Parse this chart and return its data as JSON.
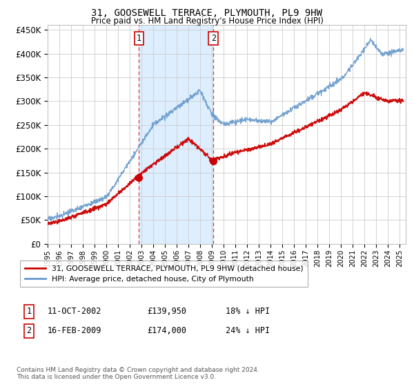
{
  "title": "31, GOOSEWELL TERRACE, PLYMOUTH, PL9 9HW",
  "subtitle": "Price paid vs. HM Land Registry's House Price Index (HPI)",
  "background_color": "#ffffff",
  "plot_bg_color": "#ffffff",
  "grid_color": "#cccccc",
  "ylim": [
    0,
    460000
  ],
  "yticks": [
    0,
    50000,
    100000,
    150000,
    200000,
    250000,
    300000,
    350000,
    400000,
    450000
  ],
  "ytick_labels": [
    "£0",
    "£50K",
    "£100K",
    "£150K",
    "£200K",
    "£250K",
    "£300K",
    "£350K",
    "£400K",
    "£450K"
  ],
  "xlim_start": 1995.0,
  "xlim_end": 2025.5,
  "xtick_years": [
    1995,
    1996,
    1997,
    1998,
    1999,
    2000,
    2001,
    2002,
    2003,
    2004,
    2005,
    2006,
    2007,
    2008,
    2009,
    2010,
    2011,
    2012,
    2013,
    2014,
    2015,
    2016,
    2017,
    2018,
    2019,
    2020,
    2021,
    2022,
    2023,
    2024,
    2025
  ],
  "transaction1_x": 2002.78,
  "transaction1_y": 139950,
  "transaction1_label": "1",
  "transaction1_date": "11-OCT-2002",
  "transaction1_price": "£139,950",
  "transaction1_hpi": "18% ↓ HPI",
  "transaction2_x": 2009.12,
  "transaction2_y": 174000,
  "transaction2_label": "2",
  "transaction2_date": "16-FEB-2009",
  "transaction2_price": "£174,000",
  "transaction2_hpi": "24% ↓ HPI",
  "shaded_region_color": "#ddeeff",
  "vline_color": "#dd3333",
  "red_line_color": "#cc0000",
  "blue_line_color": "#6699cc",
  "legend_label_red": "31, GOOSEWELL TERRACE, PLYMOUTH, PL9 9HW (detached house)",
  "legend_label_blue": "HPI: Average price, detached house, City of Plymouth",
  "footnote": "Contains HM Land Registry data © Crown copyright and database right 2024.\nThis data is licensed under the Open Government Licence v3.0."
}
